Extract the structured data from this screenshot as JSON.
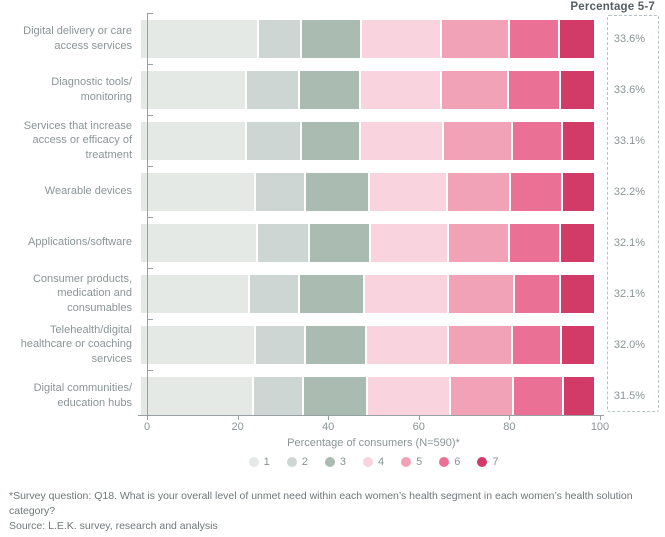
{
  "header": {
    "pct_label": "Percentage 5-7"
  },
  "chart_data": {
    "type": "bar",
    "stacked": true,
    "orientation": "horizontal",
    "xlabel": "Percentage of consumers (N=590)*",
    "xlim": [
      0,
      100
    ],
    "x_ticks": [
      0,
      20,
      40,
      60,
      80,
      100
    ],
    "grid": false,
    "legend_position": "bottom",
    "categories": [
      "Digital delivery or care access services",
      "Diagnostic tools/ monitoring",
      "Services that increase access or efficacy of treatment",
      "Wearable devices",
      "Applications/software",
      "Consumer products, medication and consumables",
      "Telehealth/digital healthcare or coaching services",
      "Digital communities/ education hubs"
    ],
    "series": [
      {
        "name": "1",
        "color": "#e4e9e6",
        "values": [
          26.0,
          23.5,
          23.4,
          25.4,
          25.8,
          24.0,
          25.4,
          25.0
        ]
      },
      {
        "name": "2",
        "color": "#cdd6d2",
        "values": [
          9.5,
          11.6,
          12.1,
          11.0,
          11.5,
          11.0,
          11.0,
          10.9
        ]
      },
      {
        "name": "3",
        "color": "#aabbb1",
        "values": [
          13.2,
          13.5,
          13.1,
          14.2,
          13.4,
          14.5,
          13.5,
          14.3
        ]
      },
      {
        "name": "4",
        "color": "#f9d3de",
        "values": [
          17.7,
          17.8,
          18.3,
          17.2,
          17.2,
          18.4,
          18.1,
          18.3
        ]
      },
      {
        "name": "5",
        "color": "#f1a2b7",
        "values": [
          15.0,
          14.8,
          15.3,
          13.8,
          13.6,
          14.6,
          14.1,
          13.9
        ]
      },
      {
        "name": "6",
        "color": "#ea7195",
        "values": [
          11.2,
          11.6,
          11.0,
          11.6,
          11.2,
          10.3,
          10.9,
          11.0
        ]
      },
      {
        "name": "7",
        "color": "#d23a67",
        "values": [
          7.4,
          7.2,
          6.8,
          6.8,
          7.3,
          7.2,
          7.0,
          6.6
        ]
      }
    ],
    "annotations": {
      "pct_5_7_values": [
        "33.6%",
        "33.6%",
        "33.1%",
        "32.2%",
        "32.1%",
        "32.1%",
        "32.0%",
        "31.5%"
      ]
    }
  },
  "footnotes": {
    "question": "*Survey question: Q18. What is your overall level of unmet need within each women’s health segment in each women’s health solution category?",
    "source": "Source: L.E.K. survey, research and analysis"
  }
}
